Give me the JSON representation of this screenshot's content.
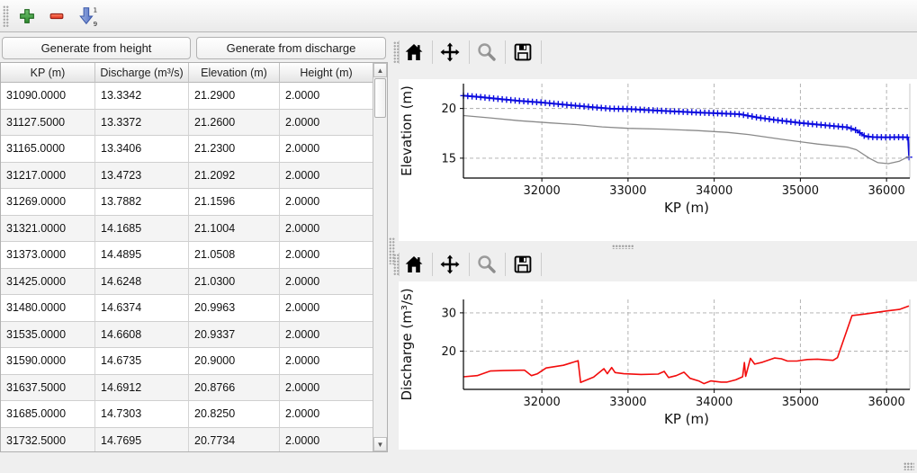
{
  "window": {
    "bg": "#efefef"
  },
  "main_toolbar": {
    "icons": [
      {
        "name": "add",
        "glyph": "plus-icon",
        "color": "#3aa23a"
      },
      {
        "name": "remove",
        "glyph": "minus-icon",
        "color": "#e43b27"
      },
      {
        "name": "sort-numeric",
        "glyph": "arrow-down-1-9-icon",
        "color": "#6b87cf",
        "top_char": "1",
        "bottom_char": "9"
      }
    ]
  },
  "left_panel": {
    "buttons": [
      {
        "label": "Generate from height"
      },
      {
        "label": "Generate from discharge"
      }
    ],
    "table": {
      "columns": [
        "KP (m)",
        "Discharge (m³/s)",
        "Elevation (m)",
        "Height (m)"
      ],
      "rows": [
        [
          "31090.0000",
          "13.3342",
          "21.2900",
          "2.0000"
        ],
        [
          "31127.5000",
          "13.3372",
          "21.2600",
          "2.0000"
        ],
        [
          "31165.0000",
          "13.3406",
          "21.2300",
          "2.0000"
        ],
        [
          "31217.0000",
          "13.4723",
          "21.2092",
          "2.0000"
        ],
        [
          "31269.0000",
          "13.7882",
          "21.1596",
          "2.0000"
        ],
        [
          "31321.0000",
          "14.1685",
          "21.1004",
          "2.0000"
        ],
        [
          "31373.0000",
          "14.4895",
          "21.0508",
          "2.0000"
        ],
        [
          "31425.0000",
          "14.6248",
          "21.0300",
          "2.0000"
        ],
        [
          "31480.0000",
          "14.6374",
          "20.9963",
          "2.0000"
        ],
        [
          "31535.0000",
          "14.6608",
          "20.9337",
          "2.0000"
        ],
        [
          "31590.0000",
          "14.6735",
          "20.9000",
          "2.0000"
        ],
        [
          "31637.5000",
          "14.6912",
          "20.8766",
          "2.0000"
        ],
        [
          "31685.0000",
          "14.7303",
          "20.8250",
          "2.0000"
        ],
        [
          "31732.5000",
          "14.7695",
          "20.7734",
          "2.0000"
        ]
      ]
    }
  },
  "chart_panels": [
    {
      "toolbar_icons": [
        "home",
        "pan",
        "zoom",
        "save"
      ]
    },
    {
      "toolbar_icons": [
        "home",
        "pan",
        "zoom",
        "save"
      ]
    }
  ],
  "chart_data": [
    {
      "type": "line",
      "title": "",
      "xlabel": "KP (m)",
      "ylabel": "Elevation (m)",
      "xlim": [
        31090,
        36270
      ],
      "ylim": [
        13,
        22.5
      ],
      "xticks": [
        32000,
        33000,
        34000,
        35000,
        36000
      ],
      "yticks": [
        15,
        20
      ],
      "grid": true,
      "legend": "none",
      "series": [
        {
          "name": "elevation",
          "color": "#0b0bdf",
          "width": 2,
          "marker": "+",
          "marker_interval_m": 50,
          "points": [
            [
              31090,
              21.29
            ],
            [
              31269,
              21.16
            ],
            [
              31535,
              20.93
            ],
            [
              31732,
              20.77
            ],
            [
              32000,
              20.6
            ],
            [
              32300,
              20.36
            ],
            [
              32600,
              20.12
            ],
            [
              32800,
              19.98
            ],
            [
              33000,
              19.95
            ],
            [
              33200,
              19.85
            ],
            [
              33500,
              19.72
            ],
            [
              33800,
              19.6
            ],
            [
              34100,
              19.5
            ],
            [
              34300,
              19.42
            ],
            [
              34500,
              19.1
            ],
            [
              34700,
              18.85
            ],
            [
              35000,
              18.55
            ],
            [
              35300,
              18.3
            ],
            [
              35550,
              18.1
            ],
            [
              35650,
              17.8
            ],
            [
              35750,
              17.2
            ],
            [
              35850,
              17.12
            ],
            [
              36000,
              17.1
            ],
            [
              36150,
              17.12
            ],
            [
              36250,
              17.1
            ],
            [
              36262,
              15.1
            ]
          ]
        },
        {
          "name": "elevation_minus_height",
          "color": "#8a8a8a",
          "width": 1.3,
          "points": [
            [
              31090,
              19.29
            ],
            [
              31400,
              19.05
            ],
            [
              31732,
              18.77
            ],
            [
              32100,
              18.55
            ],
            [
              32400,
              18.38
            ],
            [
              32700,
              18.15
            ],
            [
              33000,
              18.0
            ],
            [
              33400,
              17.92
            ],
            [
              33800,
              17.78
            ],
            [
              34150,
              17.6
            ],
            [
              34400,
              17.38
            ],
            [
              34800,
              16.88
            ],
            [
              35200,
              16.42
            ],
            [
              35550,
              16.1
            ],
            [
              35650,
              15.85
            ],
            [
              35800,
              15.0
            ],
            [
              35900,
              14.55
            ],
            [
              36020,
              14.45
            ],
            [
              36150,
              14.7
            ],
            [
              36262,
              15.2
            ]
          ]
        }
      ]
    },
    {
      "type": "line",
      "title": "",
      "xlabel": "KP (m)",
      "ylabel": "Discharge (m³/s)",
      "xlim": [
        31090,
        36270
      ],
      "ylim": [
        10,
        33.5
      ],
      "xticks": [
        32000,
        33000,
        34000,
        35000,
        36000
      ],
      "yticks": [
        20,
        30
      ],
      "grid": true,
      "legend": "none",
      "series": [
        {
          "name": "discharge",
          "color": "#f20c0c",
          "width": 1.6,
          "points": [
            [
              31090,
              13.3
            ],
            [
              31250,
              13.6
            ],
            [
              31400,
              14.8
            ],
            [
              31550,
              14.9
            ],
            [
              31750,
              15.0
            ],
            [
              31800,
              15.0
            ],
            [
              31880,
              13.6
            ],
            [
              31950,
              14.1
            ],
            [
              32050,
              15.6
            ],
            [
              32250,
              16.3
            ],
            [
              32420,
              17.5
            ],
            [
              32450,
              11.8
            ],
            [
              32600,
              13.2
            ],
            [
              32720,
              15.4
            ],
            [
              32760,
              14.1
            ],
            [
              32810,
              15.7
            ],
            [
              32850,
              14.4
            ],
            [
              32950,
              14.1
            ],
            [
              33150,
              13.9
            ],
            [
              33350,
              14.0
            ],
            [
              33420,
              14.7
            ],
            [
              33470,
              13.1
            ],
            [
              33560,
              13.6
            ],
            [
              33650,
              14.5
            ],
            [
              33720,
              12.9
            ],
            [
              33820,
              12.2
            ],
            [
              33880,
              11.5
            ],
            [
              33960,
              12.2
            ],
            [
              34080,
              11.9
            ],
            [
              34150,
              11.9
            ],
            [
              34250,
              12.5
            ],
            [
              34330,
              13.3
            ],
            [
              34350,
              17.0
            ],
            [
              34365,
              13.4
            ],
            [
              34420,
              18.1
            ],
            [
              34470,
              16.6
            ],
            [
              34560,
              17.1
            ],
            [
              34700,
              18.2
            ],
            [
              34780,
              18.0
            ],
            [
              34850,
              17.4
            ],
            [
              34960,
              17.4
            ],
            [
              35080,
              17.8
            ],
            [
              35200,
              17.9
            ],
            [
              35300,
              17.7
            ],
            [
              35380,
              17.6
            ],
            [
              35430,
              18.3
            ],
            [
              35600,
              29.3
            ],
            [
              35750,
              29.7
            ],
            [
              36000,
              30.5
            ],
            [
              36150,
              30.9
            ],
            [
              36260,
              31.8
            ]
          ]
        }
      ]
    }
  ]
}
